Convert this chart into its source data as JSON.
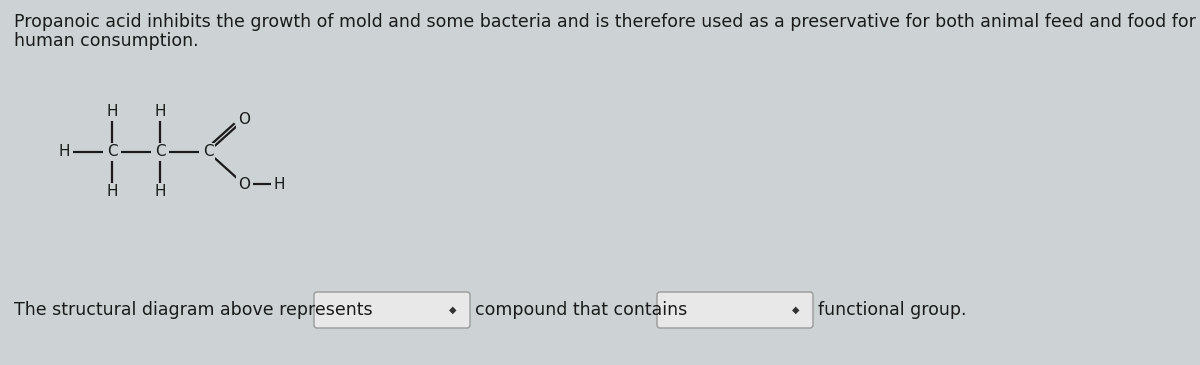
{
  "background_color": "#cdd3d5",
  "text_color": "#1a1a1a",
  "line1": "Propanoic acid inhibits the growth of mold and some bacteria and is therefore used as a preservative for both animal feed and food for",
  "line2": "human consumption.",
  "bottom_parts": [
    "The structural diagram above represents",
    "compound that contains",
    "functional group."
  ],
  "font_size_para": 12.5,
  "font_size_bottom": 12.5,
  "font_size_mol": 11,
  "box_fill": "#e8e8e8",
  "box_edge": "#999999",
  "mol_lw": 1.6
}
